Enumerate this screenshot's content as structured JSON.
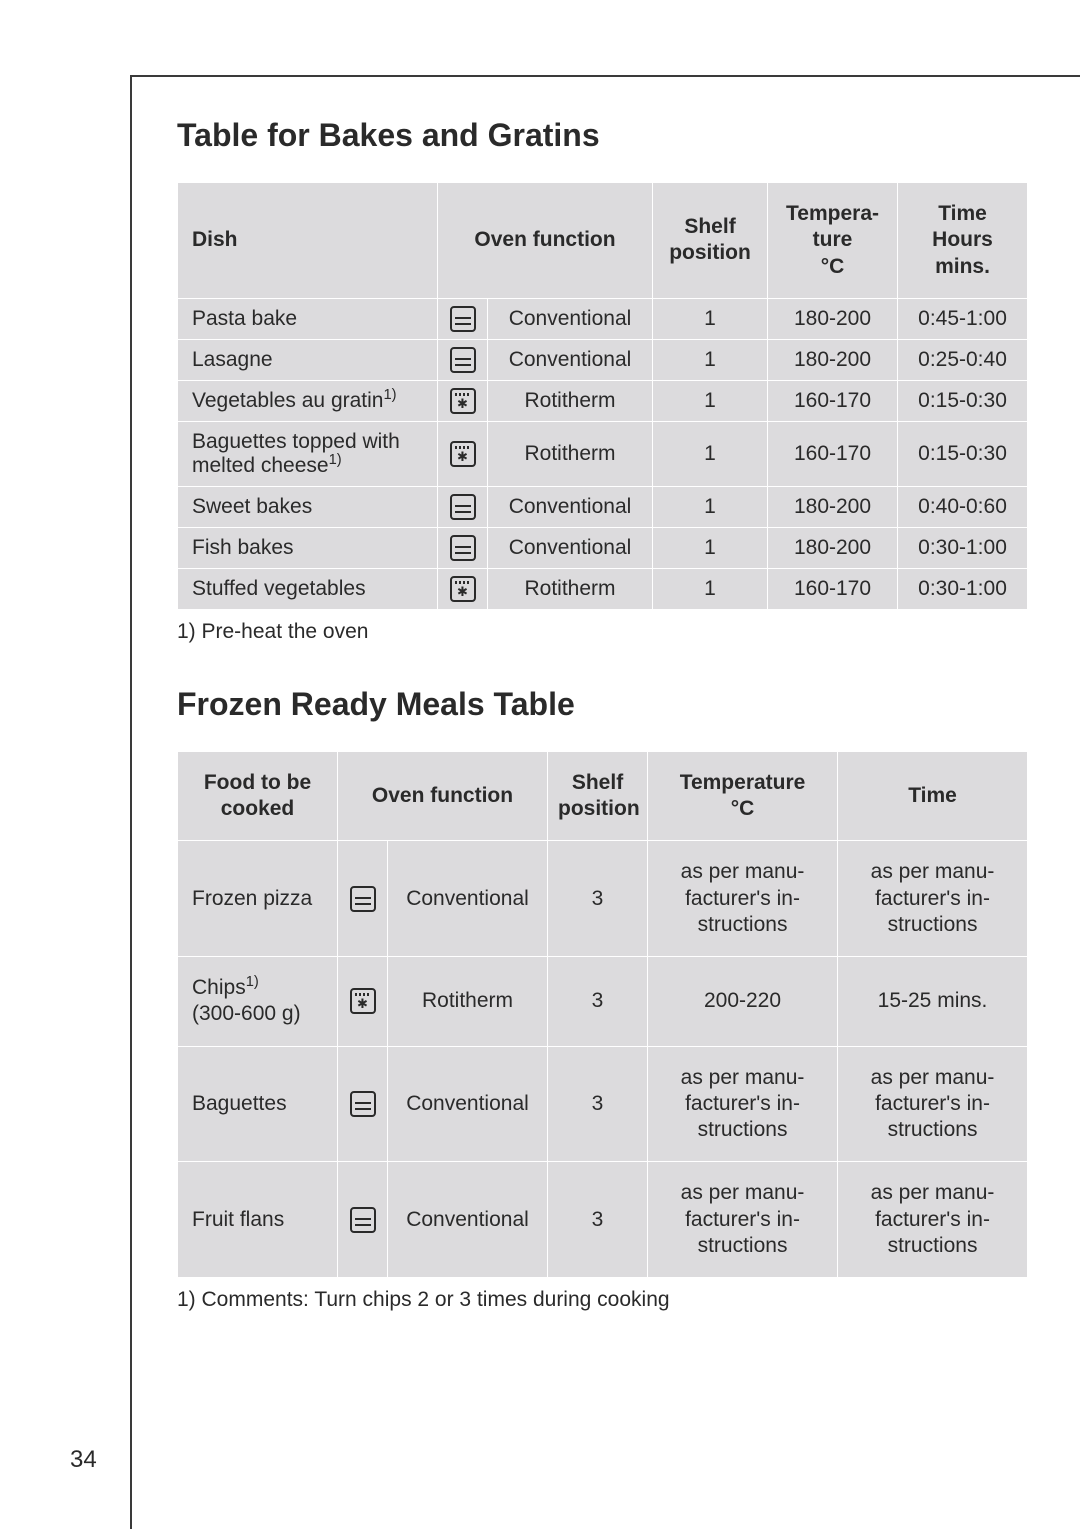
{
  "page_number": "34",
  "colors": {
    "cell_bg": "#dcdbdd",
    "border": "#ffffff",
    "text": "#2a2a2a",
    "frame": "#3a3a3a"
  },
  "icons": {
    "conventional": "conventional",
    "rotitherm": "rotitherm"
  },
  "table1": {
    "heading": "Table for Bakes and Gratins",
    "columns": [
      "Dish",
      "Oven function",
      "Shelf position",
      "Tempera-\nture\n°C",
      "Time\nHours\nmins."
    ],
    "footnote": "1) Pre-heat the oven",
    "rows": [
      {
        "dish": "Pasta bake",
        "sup": "",
        "icon": "conventional",
        "func": "Conventional",
        "shelf": "1",
        "temp": "180-200",
        "time": "0:45-1:00"
      },
      {
        "dish": "Lasagne",
        "sup": "",
        "icon": "conventional",
        "func": "Conventional",
        "shelf": "1",
        "temp": "180-200",
        "time": "0:25-0:40"
      },
      {
        "dish": "Vegetables au gratin",
        "sup": "1)",
        "icon": "rotitherm",
        "func": "Rotitherm",
        "shelf": "1",
        "temp": "160-170",
        "time": "0:15-0:30"
      },
      {
        "dish": "Baguettes topped with melted cheese",
        "sup": "1)",
        "icon": "rotitherm",
        "func": "Rotitherm",
        "shelf": "1",
        "temp": "160-170",
        "time": "0:15-0:30"
      },
      {
        "dish": "Sweet bakes",
        "sup": "",
        "icon": "conventional",
        "func": "Conventional",
        "shelf": "1",
        "temp": "180-200",
        "time": "0:40-0:60"
      },
      {
        "dish": "Fish bakes",
        "sup": "",
        "icon": "conventional",
        "func": "Conventional",
        "shelf": "1",
        "temp": "180-200",
        "time": "0:30-1:00"
      },
      {
        "dish": "Stuffed vegetables",
        "sup": "",
        "icon": "rotitherm",
        "func": "Rotitherm",
        "shelf": "1",
        "temp": "160-170",
        "time": "0:30-1:00"
      }
    ]
  },
  "table2": {
    "heading": "Frozen Ready Meals Table",
    "columns": [
      "Food to be cooked",
      "Oven function",
      "Shelf position",
      "Temperature\n°C",
      "Time"
    ],
    "footnote": "1) Comments: Turn chips 2 or 3 times during cooking",
    "rows": [
      {
        "dish": "Frozen pizza",
        "sup": "",
        "sub": "",
        "icon": "conventional",
        "func": "Conventional",
        "shelf": "3",
        "temp": "as per manu-\nfacturer's in-\nstructions",
        "time": "as per manu-\nfacturer's in-\nstructions"
      },
      {
        "dish": "Chips",
        "sup": "1)",
        "sub": "(300-600 g)",
        "icon": "rotitherm",
        "func": "Rotitherm",
        "shelf": "3",
        "temp": "200-220",
        "time": "15-25 mins."
      },
      {
        "dish": "Baguettes",
        "sup": "",
        "sub": "",
        "icon": "conventional",
        "func": "Conventional",
        "shelf": "3",
        "temp": "as per manu-\nfacturer's in-\nstructions",
        "time": "as per manu-\nfacturer's in-\nstructions"
      },
      {
        "dish": "Fruit flans",
        "sup": "",
        "sub": "",
        "icon": "conventional",
        "func": "Conventional",
        "shelf": "3",
        "temp": "as per manu-\nfacturer's in-\nstructions",
        "time": "as per manu-\nfacturer's in-\nstructions"
      }
    ]
  }
}
